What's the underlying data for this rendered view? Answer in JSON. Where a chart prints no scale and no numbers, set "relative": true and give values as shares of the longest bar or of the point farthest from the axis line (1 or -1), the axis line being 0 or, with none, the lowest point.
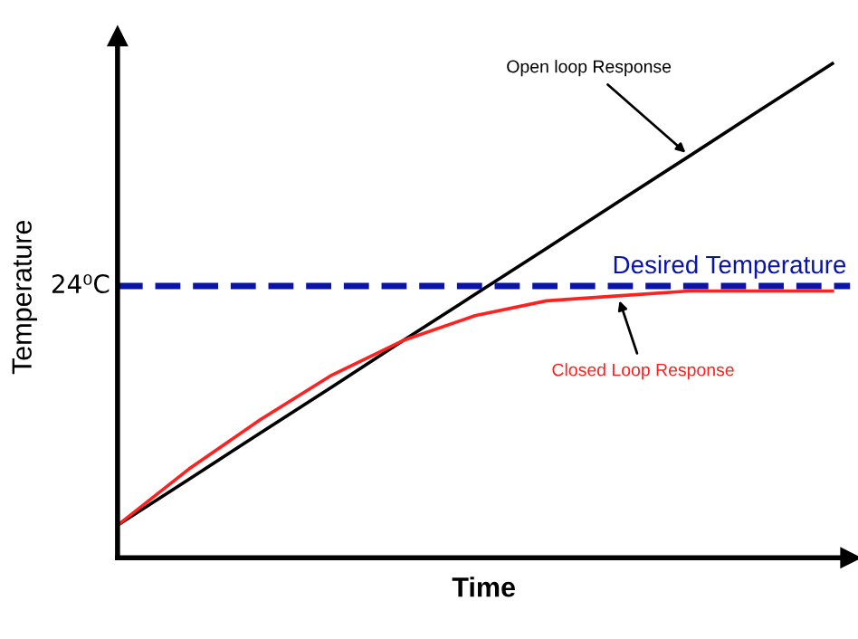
{
  "chart_data": {
    "type": "line",
    "relative": true,
    "xlabel": "Time",
    "ylabel": "Temperature",
    "marker": "none",
    "categories": [
      null,
      null,
      null,
      null,
      null,
      null,
      null,
      null,
      null,
      null,
      null
    ],
    "series": [
      {
        "color": "#000000",
        "values": [
          0.066,
          0.159,
          0.253,
          0.346,
          0.44,
          0.533,
          0.626,
          0.72,
          0.813,
          0.907,
          1.0
        ]
      },
      {
        "color": "#ff2020",
        "values": [
          0.066,
          0.18,
          0.28,
          0.37,
          0.44,
          0.49,
          0.52,
          0.53,
          0.54,
          0.54,
          0.54
        ]
      }
    ],
    "ref_lines": [
      {
        "axis": "y",
        "value": 0.55,
        "label": "Desired Temperature",
        "color": "#0a14a8",
        "line_style": "dashed"
      }
    ],
    "annotations": [
      "24⁰C",
      "Open loop Response",
      "Closed Loop Response"
    ]
  }
}
